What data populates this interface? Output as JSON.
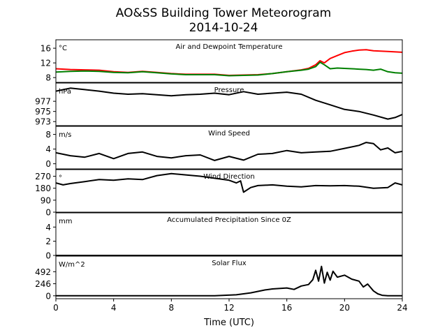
{
  "title_line1": "AO&SS Building Tower Meteorogram",
  "title_line2": "2014-10-24",
  "xlabel": "Time (UTC)",
  "xticks": [
    "0",
    "4",
    "8",
    "12",
    "16",
    "20",
    "24"
  ],
  "colors": {
    "temperature": "#ff0000",
    "dewpoint": "#008000",
    "black": "#000000"
  },
  "chart_data": [
    {
      "type": "line",
      "title": "Air and Dewpoint Temperature",
      "unit": "°C",
      "xlim": [
        0,
        24
      ],
      "ylim": [
        6.7,
        18.3
      ],
      "yticks": [
        16,
        12,
        8
      ],
      "series": [
        {
          "color": "#ff0000",
          "x": [
            0,
            1,
            2,
            3,
            4,
            5,
            6,
            7,
            8,
            9,
            10,
            11,
            12,
            13,
            14,
            15,
            16,
            17,
            17.5,
            18,
            18.3,
            18.6,
            19,
            19.5,
            20,
            20.5,
            21,
            21.5,
            22,
            22.5,
            23,
            24
          ],
          "y": [
            10.4,
            10.2,
            10.1,
            10.0,
            9.6,
            9.4,
            9.7,
            9.4,
            9.1,
            8.9,
            8.9,
            8.9,
            8.6,
            8.7,
            8.8,
            9.1,
            9.6,
            10.1,
            10.5,
            11.5,
            12.6,
            12.0,
            13.2,
            14.0,
            14.8,
            15.2,
            15.5,
            15.6,
            15.3,
            15.2,
            15.1,
            14.9
          ]
        },
        {
          "color": "#008000",
          "x": [
            0,
            1,
            2,
            3,
            4,
            5,
            6,
            7,
            8,
            9,
            10,
            11,
            12,
            13,
            14,
            15,
            16,
            17,
            17.5,
            18,
            18.3,
            18.6,
            19,
            19.5,
            20,
            20.5,
            21,
            21.5,
            22,
            22.5,
            23,
            23.5,
            24
          ],
          "y": [
            9.5,
            9.7,
            9.8,
            9.7,
            9.4,
            9.3,
            9.6,
            9.3,
            9.0,
            8.8,
            8.8,
            8.8,
            8.5,
            8.6,
            8.7,
            9.1,
            9.6,
            10.0,
            10.3,
            11.0,
            12.2,
            11.5,
            10.4,
            10.6,
            10.5,
            10.4,
            10.3,
            10.2,
            10.0,
            10.3,
            9.6,
            9.3,
            9.2
          ]
        }
      ]
    },
    {
      "type": "line",
      "title": "Pressure",
      "unit": "hPa",
      "xlim": [
        0,
        24
      ],
      "ylim": [
        972.2,
        980.6
      ],
      "yticks": [
        977,
        975,
        973
      ],
      "series": [
        {
          "color": "#000000",
          "x": [
            0,
            1,
            2,
            3,
            4,
            5,
            6,
            7,
            8,
            9,
            10,
            11,
            12,
            13,
            14,
            15,
            16,
            17,
            18,
            19,
            20,
            21,
            22,
            23,
            23.5,
            24
          ],
          "y": [
            979.0,
            979.6,
            979.3,
            979.0,
            978.6,
            978.4,
            978.5,
            978.3,
            978.1,
            978.3,
            978.4,
            978.6,
            978.3,
            978.9,
            978.4,
            978.6,
            978.8,
            978.4,
            977.2,
            976.3,
            975.4,
            975.0,
            974.3,
            973.5,
            973.8,
            974.4
          ]
        }
      ]
    },
    {
      "type": "line",
      "title": "Wind Speed",
      "unit": "m/s",
      "xlim": [
        0,
        24
      ],
      "ylim": [
        -1.4,
        10.2
      ],
      "yticks": [
        8,
        4,
        0
      ],
      "series": [
        {
          "color": "#000000",
          "x": [
            0,
            1,
            2,
            3,
            4,
            5,
            6,
            7,
            8,
            9,
            10,
            11,
            12,
            13,
            14,
            15,
            16,
            17,
            18,
            19,
            20,
            21,
            21.5,
            22,
            22.5,
            23,
            23.5,
            24
          ],
          "y": [
            3.0,
            2.2,
            1.8,
            2.8,
            1.4,
            2.8,
            3.2,
            2.0,
            1.6,
            2.2,
            2.4,
            0.9,
            2.0,
            1.0,
            2.6,
            2.8,
            3.6,
            3.0,
            3.2,
            3.4,
            4.2,
            5.0,
            5.8,
            5.5,
            3.8,
            4.3,
            3.0,
            3.4
          ]
        }
      ]
    },
    {
      "type": "line",
      "title": "Wind Direction",
      "unit": "°",
      "xlim": [
        0,
        24
      ],
      "ylim": [
        0,
        320
      ],
      "yticks": [
        270,
        180,
        90,
        0
      ],
      "series": [
        {
          "color": "#000000",
          "x": [
            0,
            0.5,
            1,
            2,
            3,
            4,
            5,
            6,
            7,
            8,
            9,
            10,
            11,
            12,
            12.5,
            12.8,
            13,
            13.5,
            14,
            15,
            16,
            17,
            18,
            19,
            20,
            21,
            22,
            23,
            23.5,
            24
          ],
          "y": [
            220,
            205,
            215,
            230,
            245,
            240,
            250,
            245,
            275,
            290,
            280,
            270,
            255,
            240,
            220,
            235,
            150,
            185,
            200,
            205,
            195,
            190,
            200,
            198,
            200,
            195,
            180,
            185,
            220,
            205
          ]
        }
      ]
    },
    {
      "type": "line",
      "title": "Accumulated Precipitation Since 0Z",
      "unit": "mm",
      "xlim": [
        0,
        24
      ],
      "ylim": [
        0,
        6
      ],
      "yticks": [
        4,
        2,
        0
      ],
      "series": [
        {
          "color": "#000000",
          "x": [
            0,
            24
          ],
          "y": [
            0,
            0
          ]
        }
      ]
    },
    {
      "type": "line",
      "title": "Solar Flux",
      "unit": "W/m^2",
      "xlim": [
        0,
        24
      ],
      "ylim": [
        -60,
        810
      ],
      "yticks": [
        492,
        246,
        0
      ],
      "series": [
        {
          "color": "#000000",
          "x": [
            0,
            11,
            12.5,
            13.5,
            14.5,
            15,
            16,
            16.5,
            17,
            17.5,
            17.8,
            18,
            18.2,
            18.4,
            18.6,
            18.8,
            19,
            19.2,
            19.5,
            20,
            20.5,
            21,
            21.3,
            21.6,
            22,
            22.3,
            22.6,
            23,
            24
          ],
          "y": [
            0,
            0,
            20,
            60,
            120,
            140,
            160,
            130,
            200,
            230,
            330,
            520,
            300,
            600,
            260,
            480,
            320,
            500,
            380,
            420,
            340,
            300,
            180,
            240,
            100,
            40,
            10,
            0,
            0
          ]
        }
      ]
    }
  ]
}
